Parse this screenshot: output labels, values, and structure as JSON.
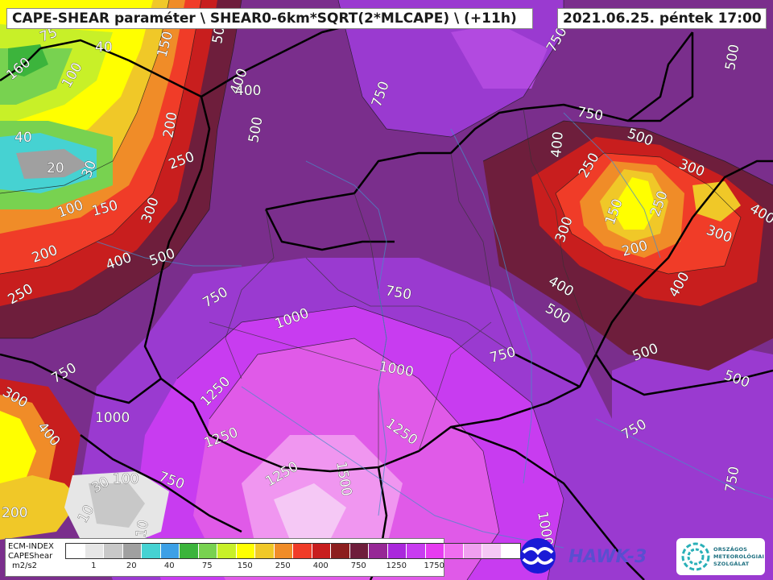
{
  "header": {
    "title": "CAPE-SHEAR paraméter \\ SHEAR0-6km*SQRT(2*MLCAPE) \\ (+11h)",
    "datetime": "2021.06.25. péntek 17:00"
  },
  "legend": {
    "line1": "ECM-INDEX",
    "line2": "CAPEShear",
    "unit": "m2/s2",
    "colors": [
      "#ffffff",
      "#e6e6e6",
      "#c8c8c8",
      "#a0a0a0",
      "#46d2d2",
      "#3ca0e6",
      "#3cb43c",
      "#78d250",
      "#c8f028",
      "#ffff00",
      "#f0c828",
      "#f08c28",
      "#f03c28",
      "#c81e1e",
      "#8c1e1e",
      "#6e1e3c",
      "#962896",
      "#aa28dc",
      "#c83cf0",
      "#e63cf0",
      "#f06ef0",
      "#f0a0f0",
      "#f5c8f5",
      "#ffffff"
    ],
    "tick_labels": [
      "1",
      "20",
      "40",
      "75",
      "150",
      "250",
      "400",
      "750",
      "1250",
      "1750"
    ]
  },
  "contour_labels": [
    "75",
    "40",
    "160",
    "100",
    "150",
    "200",
    "250",
    "400",
    "500",
    "750",
    "500",
    "400",
    "40",
    "20",
    "30",
    "100",
    "150",
    "300",
    "400",
    "500",
    "200",
    "250",
    "750",
    "1000",
    "750",
    "1000",
    "1250",
    "1250",
    "1250",
    "1250",
    "1500",
    "300",
    "750",
    "400",
    "1000",
    "30",
    "100",
    "750",
    "10",
    "10",
    "200",
    "400",
    "500",
    "300",
    "250",
    "200",
    "150",
    "250",
    "300",
    "400",
    "500",
    "500",
    "750",
    "750",
    "400",
    "300",
    "400",
    "500",
    "750",
    "500",
    "750",
    "750",
    "1000"
  ],
  "logos": {
    "hawk": "HAWK-3",
    "omsz_1": "ORSZÁGOS",
    "omsz_2": "METEOROLÓGIAI",
    "omsz_3": "SZOLGÁLAT"
  }
}
